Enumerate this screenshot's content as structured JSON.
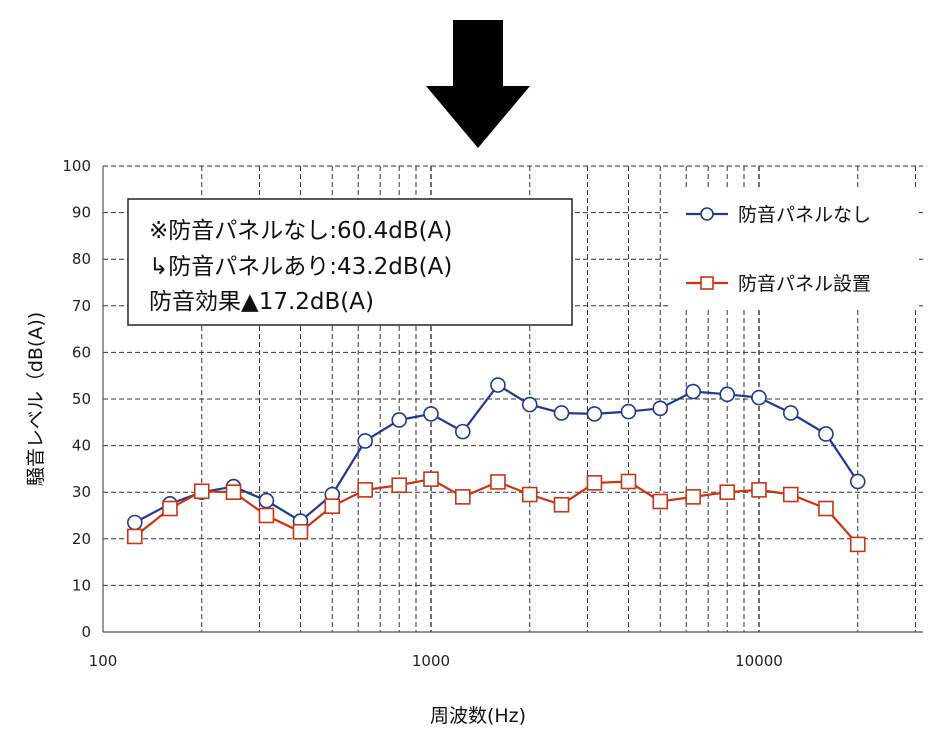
{
  "chart_data": {
    "type": "line",
    "x_scale": "log",
    "xlabel": "周波数(Hz)",
    "ylabel": "騒音レベル（dB(A))",
    "xlim": [
      100,
      31623
    ],
    "ylim": [
      0,
      100
    ],
    "y_ticks": [
      0,
      10,
      20,
      30,
      40,
      50,
      60,
      70,
      80,
      90,
      100
    ],
    "x_tick_labels": [
      {
        "value": 100,
        "label": "100"
      },
      {
        "value": 1000,
        "label": "1000"
      },
      {
        "value": 10000,
        "label": "10000"
      }
    ],
    "x": [
      125,
      160,
      200,
      250,
      315,
      400,
      500,
      630,
      800,
      1000,
      1250,
      1600,
      2000,
      2500,
      3150,
      4000,
      5000,
      6300,
      8000,
      10000,
      12500,
      16000,
      20000
    ],
    "series": [
      {
        "name": "防音パネルなし",
        "color": "#1f3a93",
        "marker": "circle",
        "values": [
          23.5,
          27.5,
          30.0,
          31.2,
          28.2,
          23.8,
          29.5,
          41.0,
          45.5,
          46.8,
          43.0,
          53.0,
          48.8,
          47.0,
          46.8,
          47.3,
          48.0,
          51.6,
          51.0,
          50.3,
          47.0,
          42.5,
          32.3
        ]
      },
      {
        "name": "防音パネル設置",
        "color": "#cc3311",
        "marker": "square",
        "values": [
          20.5,
          26.5,
          30.2,
          30.0,
          25.0,
          21.5,
          27.0,
          30.5,
          31.5,
          32.8,
          29.0,
          32.2,
          29.5,
          27.3,
          32.0,
          32.3,
          28.0,
          29.0,
          30.0,
          30.5,
          29.5,
          26.5,
          18.8
        ]
      }
    ],
    "legend_position": "top-right",
    "grid": true,
    "annotation": {
      "line1": "※防音パネルなし:60.4dB(A)",
      "line2": "↳防音パネルあり:43.2dB(A)",
      "line3": "防音効果▲17.2dB(A)",
      "line3_color": "#e02020"
    }
  },
  "arrow": {
    "direction": "down",
    "color": "#000000"
  }
}
